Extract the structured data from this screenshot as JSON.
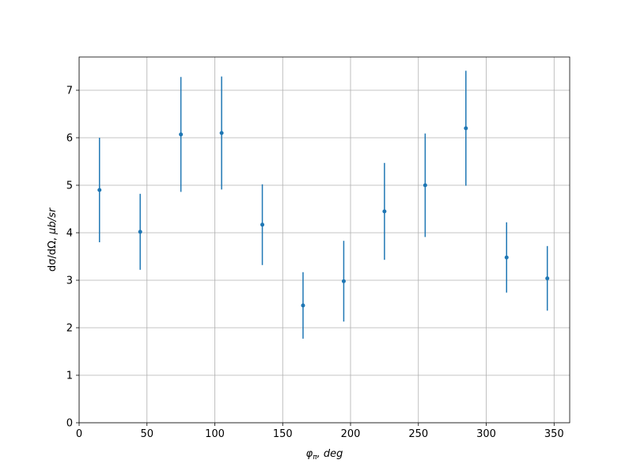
{
  "chart_data": {
    "type": "errorbar",
    "xlabel": [
      "φ",
      "π",
      ", deg"
    ],
    "ylabel": [
      "dσ/dΩ, ",
      "μb/sr"
    ],
    "series": [
      {
        "color": "#1f77b4",
        "x": [
          15,
          45,
          75,
          105,
          135,
          165,
          195,
          225,
          255,
          285,
          315,
          345
        ],
        "values": [
          4.9,
          4.02,
          6.07,
          6.1,
          4.17,
          2.47,
          2.98,
          4.45,
          5.0,
          6.2,
          3.48,
          3.04
        ],
        "errors": [
          1.1,
          0.8,
          1.21,
          1.19,
          0.85,
          0.7,
          0.85,
          1.02,
          1.09,
          1.21,
          0.74,
          0.68
        ]
      }
    ],
    "xlim": [
      0,
      361.5
    ],
    "xticks": [
      0,
      50,
      100,
      150,
      200,
      250,
      300,
      350
    ],
    "ylim": [
      0,
      7.7
    ],
    "yticks": [
      0,
      1,
      2,
      3,
      4,
      5,
      6,
      7
    ],
    "grid": true
  }
}
